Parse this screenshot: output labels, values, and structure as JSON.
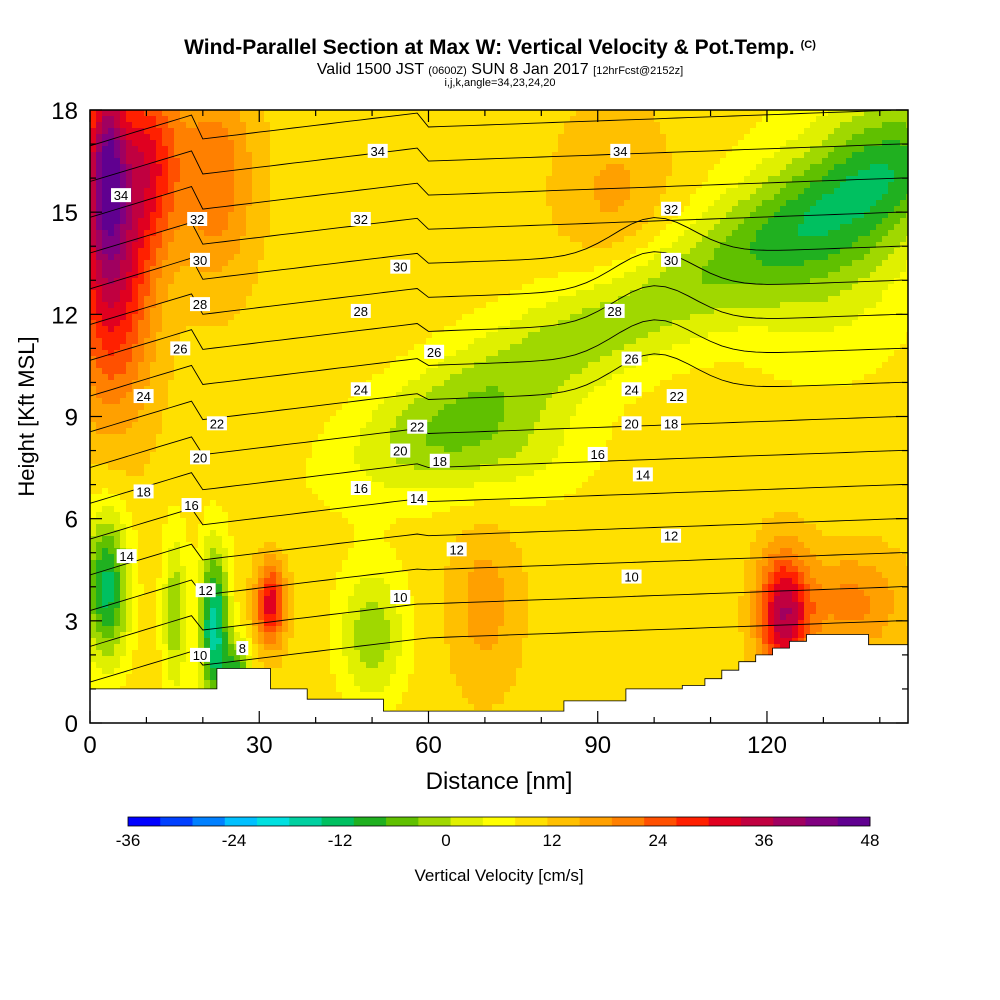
{
  "header": {
    "title": "Wind-Parallel Section at Max W: Vertical Velocity & Pot.Temp.",
    "copyright": "(C)",
    "valid_prefix": "Valid 1500 JST",
    "zulu": "(0600Z)",
    "valid_date": "SUN 8 Jan 2017",
    "forecast": "[12hrFcst@2152z]",
    "grid_info": "i,j,k,angle=34,23,24,20"
  },
  "chart_data": {
    "type": "heatmap",
    "xlabel": "Distance [nm]",
    "ylabel": "Height [Kft MSL]",
    "xlim": [
      0,
      145
    ],
    "ylim": [
      0,
      18
    ],
    "x_ticks": [
      0,
      30,
      60,
      90,
      120
    ],
    "y_ticks": [
      0,
      3,
      6,
      9,
      12,
      15,
      18
    ],
    "colorbar": {
      "label": "Vertical Velocity [cm/s]",
      "tick_labels": [
        "-36",
        "-24",
        "-12",
        "0",
        "12",
        "24",
        "36",
        "48"
      ],
      "tick_values": [
        -36,
        -24,
        -12,
        0,
        12,
        24,
        36,
        48
      ],
      "colors": [
        "#0000ff",
        "#0040ff",
        "#0080ff",
        "#00c0ff",
        "#00e0e0",
        "#00d0a0",
        "#00c060",
        "#20b020",
        "#60c000",
        "#a0d800",
        "#e0f000",
        "#ffff00",
        "#ffe000",
        "#ffc000",
        "#ffa000",
        "#ff8000",
        "#ff5000",
        "#ff2000",
        "#e00020",
        "#c00040",
        "#a00060",
        "#800080",
        "#600090"
      ]
    },
    "theta_contour_labels": [
      {
        "value": "34",
        "x": 5.5,
        "y": 15.5
      },
      {
        "value": "34",
        "x": 51,
        "y": 16.8
      },
      {
        "value": "34",
        "x": 94,
        "y": 16.8
      },
      {
        "value": "32",
        "x": 19,
        "y": 14.8
      },
      {
        "value": "32",
        "x": 48,
        "y": 14.8
      },
      {
        "value": "32",
        "x": 103,
        "y": 15.1
      },
      {
        "value": "30",
        "x": 19.5,
        "y": 13.6
      },
      {
        "value": "30",
        "x": 55,
        "y": 13.4
      },
      {
        "value": "30",
        "x": 103,
        "y": 13.6
      },
      {
        "value": "28",
        "x": 19.5,
        "y": 12.3
      },
      {
        "value": "28",
        "x": 48,
        "y": 12.1
      },
      {
        "value": "28",
        "x": 93,
        "y": 12.1
      },
      {
        "value": "26",
        "x": 16,
        "y": 11.0
      },
      {
        "value": "26",
        "x": 61,
        "y": 10.9
      },
      {
        "value": "26",
        "x": 96,
        "y": 10.7
      },
      {
        "value": "24",
        "x": 9.5,
        "y": 9.6
      },
      {
        "value": "24",
        "x": 48,
        "y": 9.8
      },
      {
        "value": "24",
        "x": 96,
        "y": 9.8
      },
      {
        "value": "22",
        "x": 22.5,
        "y": 8.8
      },
      {
        "value": "22",
        "x": 58,
        "y": 8.7
      },
      {
        "value": "22",
        "x": 104,
        "y": 9.6
      },
      {
        "value": "20",
        "x": 19.5,
        "y": 7.8
      },
      {
        "value": "20",
        "x": 55,
        "y": 8.0
      },
      {
        "value": "20",
        "x": 96,
        "y": 8.8
      },
      {
        "value": "18",
        "x": 9.5,
        "y": 6.8
      },
      {
        "value": "18",
        "x": 62,
        "y": 7.7
      },
      {
        "value": "18",
        "x": 103,
        "y": 8.8
      },
      {
        "value": "16",
        "x": 18,
        "y": 6.4
      },
      {
        "value": "16",
        "x": 48,
        "y": 6.9
      },
      {
        "value": "16",
        "x": 90,
        "y": 7.9
      },
      {
        "value": "14",
        "x": 6.5,
        "y": 4.9
      },
      {
        "value": "14",
        "x": 58,
        "y": 6.6
      },
      {
        "value": "14",
        "x": 98,
        "y": 7.3
      },
      {
        "value": "12",
        "x": 20.5,
        "y": 3.9
      },
      {
        "value": "12",
        "x": 65,
        "y": 5.1
      },
      {
        "value": "12",
        "x": 103,
        "y": 5.5
      },
      {
        "value": "10",
        "x": 19.5,
        "y": 2.0
      },
      {
        "value": "10",
        "x": 55,
        "y": 3.7
      },
      {
        "value": "10",
        "x": 96,
        "y": 4.3
      },
      {
        "value": "8",
        "x": 27,
        "y": 2.2
      }
    ],
    "terrain_height": [
      [
        0,
        1.0
      ],
      [
        22.5,
        1.0
      ],
      [
        22.5,
        1.6
      ],
      [
        32,
        1.6
      ],
      [
        32,
        1.0
      ],
      [
        38.5,
        1.0
      ],
      [
        38.5,
        0.7
      ],
      [
        52,
        0.7
      ],
      [
        52,
        0.35
      ],
      [
        70,
        0.35
      ],
      [
        84,
        0.35
      ],
      [
        84,
        0.65
      ],
      [
        95,
        0.65
      ],
      [
        95,
        1.0
      ],
      [
        105,
        1.0
      ],
      [
        105,
        1.1
      ],
      [
        109,
        1.1
      ],
      [
        109,
        1.3
      ],
      [
        112,
        1.3
      ],
      [
        112,
        1.55
      ],
      [
        115,
        1.55
      ],
      [
        115,
        1.8
      ],
      [
        118,
        1.8
      ],
      [
        118,
        2.0
      ],
      [
        121,
        2.0
      ],
      [
        121,
        2.2
      ],
      [
        124,
        2.2
      ],
      [
        124,
        2.4
      ],
      [
        127,
        2.4
      ],
      [
        127,
        2.6
      ],
      [
        138,
        2.6
      ],
      [
        138,
        2.3
      ],
      [
        145,
        2.3
      ]
    ]
  }
}
